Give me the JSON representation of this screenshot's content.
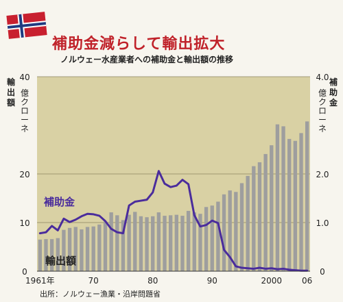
{
  "header": {
    "title": "補助金減らして輸出拡大",
    "subtitle": "ノルウェー水産業者への補助金と輸出額の推移"
  },
  "source": "出所：ノルウェー漁業・沿岸問題省",
  "colors": {
    "background": "#d9d1a4",
    "bar": "#9e9e9e",
    "line": "#4a2c9c",
    "title": "#c0222a",
    "flag_red": "#c8202f",
    "flag_blue": "#1f3a80"
  },
  "chart_data": {
    "type": "bar",
    "left_axis": {
      "label": "輸出額",
      "unit": "億クローネ",
      "ticks": [
        "0",
        "10",
        "20",
        "40"
      ],
      "tick_values": [
        0,
        10,
        20,
        40
      ],
      "ylim": [
        0,
        40
      ]
    },
    "right_axis": {
      "label": "補助金",
      "unit": "億クローネ",
      "ticks": [
        "0",
        "1.0",
        "2.0",
        "4.0"
      ],
      "tick_values": [
        0,
        1,
        2,
        4
      ],
      "ylim": [
        0,
        4
      ]
    },
    "x_ticks": [
      "1961年",
      "70",
      "80",
      "90",
      "2000",
      "06"
    ],
    "x_tick_years": [
      1961,
      1970,
      1980,
      1990,
      2000,
      2006
    ],
    "x": [
      1961,
      1962,
      1963,
      1964,
      1965,
      1966,
      1967,
      1968,
      1969,
      1970,
      1971,
      1972,
      1973,
      1974,
      1975,
      1976,
      1977,
      1978,
      1979,
      1980,
      1981,
      1982,
      1983,
      1984,
      1985,
      1986,
      1987,
      1988,
      1989,
      1990,
      1991,
      1992,
      1993,
      1994,
      1995,
      1996,
      1997,
      1998,
      1999,
      2000,
      2001,
      2002,
      2003,
      2004,
      2005,
      2006
    ],
    "series": [
      {
        "name": "輸出額",
        "type": "bar",
        "axis": "left",
        "values": [
          6.5,
          6.6,
          6.6,
          6.8,
          8.5,
          8.9,
          9.1,
          8.6,
          9.1,
          9.2,
          9.6,
          10.2,
          12.1,
          11.5,
          10.5,
          11.6,
          12.2,
          11.3,
          11.1,
          11.3,
          12.1,
          11.4,
          11.5,
          11.6,
          11.4,
          12.4,
          12.1,
          11.8,
          13.2,
          13.5,
          14.3,
          15.8,
          16.6,
          16.3,
          18.1,
          19.6,
          21.6,
          22.4,
          24.1,
          25.9,
          30.2,
          29.8,
          27.2,
          26.8,
          28.4,
          30.8
        ]
      },
      {
        "name": "補助金",
        "type": "line",
        "axis": "right",
        "values": [
          0.78,
          0.8,
          0.93,
          0.84,
          1.08,
          1.01,
          1.06,
          1.13,
          1.18,
          1.17,
          1.14,
          1.03,
          0.87,
          0.8,
          0.78,
          1.35,
          1.43,
          1.45,
          1.47,
          1.62,
          2.06,
          1.8,
          1.73,
          1.76,
          1.88,
          1.79,
          1.15,
          0.92,
          0.95,
          1.04,
          0.99,
          0.44,
          0.29,
          0.1,
          0.07,
          0.06,
          0.05,
          0.07,
          0.05,
          0.06,
          0.04,
          0.05,
          0.03,
          0.02,
          0.01,
          0.01
        ]
      }
    ],
    "grid": true,
    "legend": "inline labels"
  }
}
